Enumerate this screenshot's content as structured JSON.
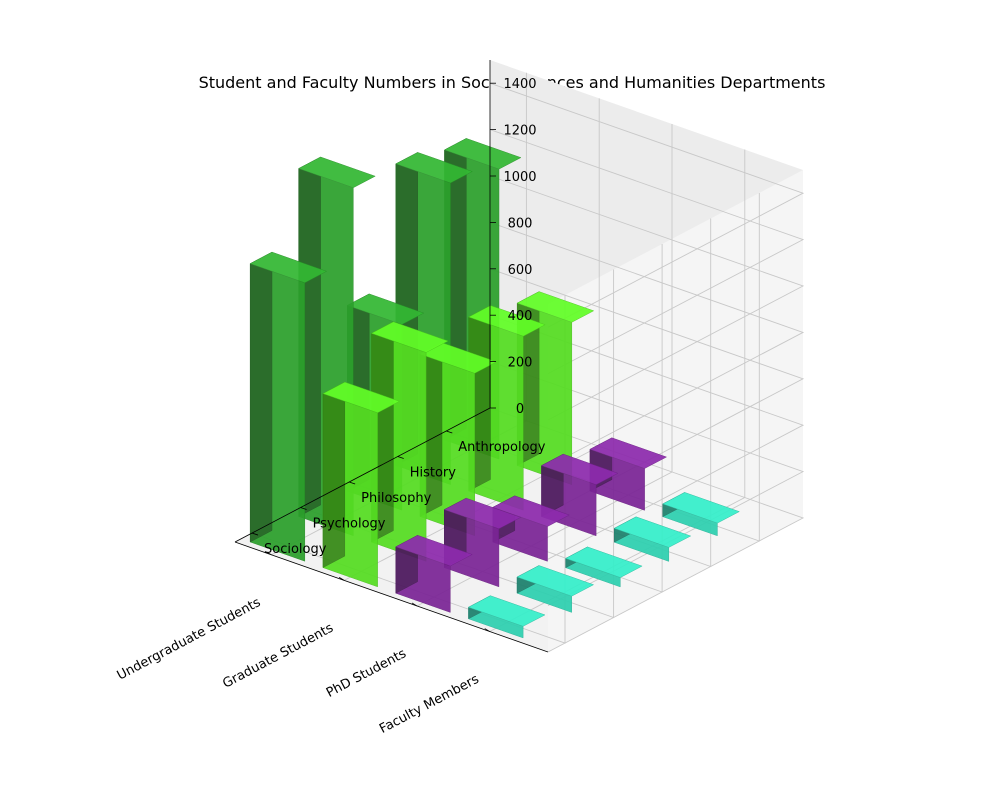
{
  "chart_data": {
    "type": "bar3d",
    "title": "Student and Faculty Numbers in Social Sciences and Humanities Departments",
    "x_categories": [
      "Undergraduate Students",
      "Graduate Students",
      "PhD Students",
      "Faculty Members"
    ],
    "y_categories": [
      "Sociology",
      "Psychology",
      "Philosophy",
      "History",
      "Anthropology"
    ],
    "zlim": [
      0,
      1500
    ],
    "z_ticks": [
      0,
      200,
      400,
      600,
      800,
      1000,
      1200,
      1400
    ],
    "grid": true,
    "colors": {
      "Undergraduate Students": "#2ca02c",
      "Graduate Students": "#55dd22",
      "PhD Students": "#7b2596",
      "Faculty Members": "#2ed0b0"
    },
    "values": [
      [
        1200,
        750,
        200,
        50
      ],
      [
        1500,
        900,
        250,
        70
      ],
      [
        800,
        700,
        150,
        40
      ],
      [
        1300,
        750,
        220,
        60
      ],
      [
        1250,
        700,
        180,
        55
      ]
    ]
  }
}
